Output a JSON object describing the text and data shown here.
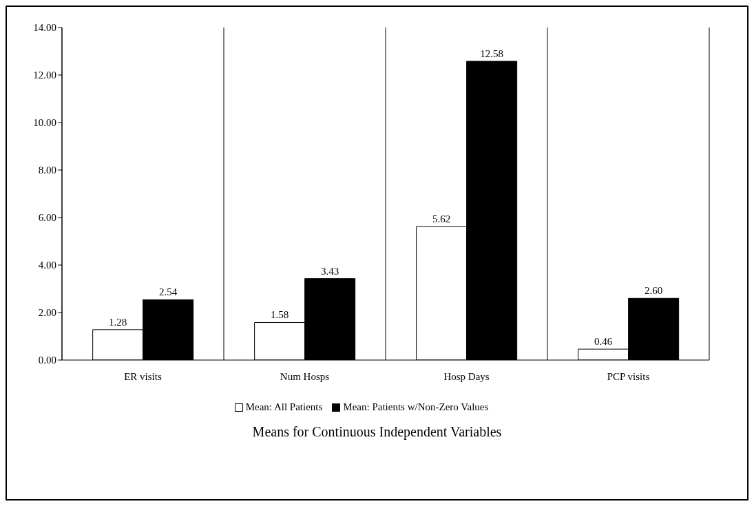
{
  "chart_data": {
    "type": "bar",
    "title": "Means for Continuous Independent Variables",
    "categories": [
      "ER visits",
      "Num Hosps",
      "Hosp Days",
      "PCP visits"
    ],
    "series": [
      {
        "name": "Mean: All Patients",
        "color": "#ffffff",
        "values": [
          1.28,
          1.58,
          5.62,
          0.46
        ],
        "value_labels": [
          "1.28",
          "1.58",
          "5.62",
          "0.46"
        ]
      },
      {
        "name": "Mean: Patients w/Non-Zero Values",
        "color": "#000000",
        "values": [
          2.54,
          3.43,
          12.58,
          2.6
        ],
        "value_labels": [
          "2.54",
          "3.43",
          "12.58",
          "2.60"
        ]
      }
    ],
    "ylim": [
      0,
      14
    ],
    "yticks": [
      {
        "value": 0,
        "label": "0.00"
      },
      {
        "value": 2,
        "label": "2.00"
      },
      {
        "value": 4,
        "label": "4.00"
      },
      {
        "value": 6,
        "label": "6.00"
      },
      {
        "value": 8,
        "label": "8.00"
      },
      {
        "value": 10,
        "label": "10.00"
      },
      {
        "value": 12,
        "label": "12.00"
      },
      {
        "value": 14,
        "label": "14.00"
      }
    ],
    "grid": "x",
    "legend": "bottom"
  }
}
